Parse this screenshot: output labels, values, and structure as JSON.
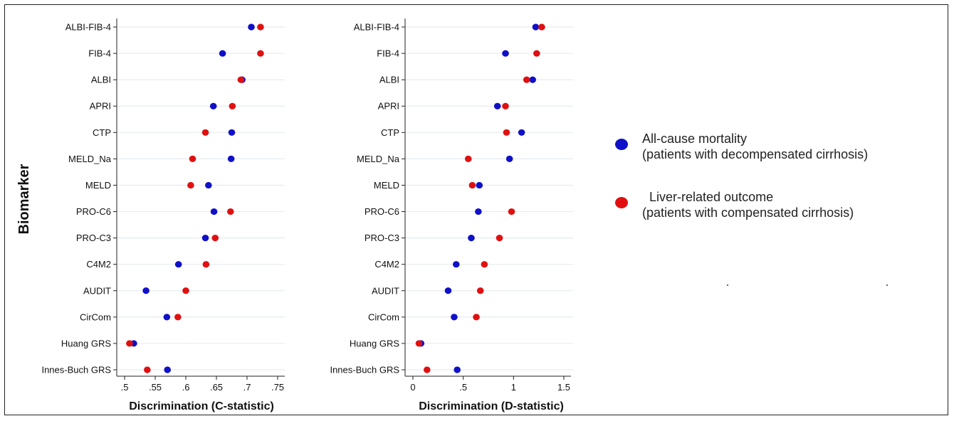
{
  "chart_data": [
    {
      "type": "scatter",
      "xlabel": "Discrimination (C-statistic)",
      "ylabel": "Biomarker",
      "xlim": [
        0.5,
        0.75
      ],
      "xticks": [
        ".5",
        ".55",
        ".6",
        ".65",
        ".7",
        ".75"
      ],
      "grid": "horizontal",
      "categories": [
        "ALBI-FIB-4",
        "FIB-4",
        "ALBI",
        "APRI",
        "CTP",
        "MELD_Na",
        "MELD",
        "PRO-C6",
        "PRO-C3",
        "C4M2",
        "AUDIT",
        "CirCom",
        "Huang GRS",
        "Innes-Buch GRS"
      ],
      "series": [
        {
          "name": "All-cause mortality (patients with decompensated cirrhosis)",
          "color": "#1010c8",
          "values": [
            0.707,
            0.66,
            0.692,
            0.645,
            0.675,
            0.674,
            0.637,
            0.646,
            0.632,
            0.588,
            0.535,
            0.569,
            0.515,
            0.57
          ]
        },
        {
          "name": "Liver-related outcome (patients with compensated cirrhosis)",
          "color": "#e01010",
          "values": [
            0.722,
            0.722,
            0.69,
            0.676,
            0.632,
            0.611,
            0.608,
            0.673,
            0.648,
            0.633,
            0.6,
            0.587,
            0.508,
            0.537
          ]
        }
      ]
    },
    {
      "type": "scatter",
      "xlabel": "Discrimination (D-statistic)",
      "xlim": [
        0,
        1.5
      ],
      "xticks": [
        "0",
        ".5",
        "1",
        "1.5"
      ],
      "grid": "horizontal",
      "categories": [
        "ALBI-FIB-4",
        "FIB-4",
        "ALBI",
        "APRI",
        "CTP",
        "MELD_Na",
        "MELD",
        "PRO-C6",
        "PRO-C3",
        "C4M2",
        "AUDIT",
        "CirCom",
        "Huang GRS",
        "Innes-Buch GRS"
      ],
      "series": [
        {
          "name": "All-cause mortality (patients with decompensated cirrhosis)",
          "color": "#1010c8",
          "values": [
            1.22,
            0.92,
            1.19,
            0.84,
            1.08,
            0.96,
            0.66,
            0.65,
            0.58,
            0.43,
            0.35,
            0.41,
            0.08,
            0.44
          ]
        },
        {
          "name": "Liver-related outcome (patients with compensated cirrhosis)",
          "color": "#e01010",
          "values": [
            1.28,
            1.23,
            1.13,
            0.92,
            0.93,
            0.55,
            0.59,
            0.98,
            0.86,
            0.71,
            0.67,
            0.63,
            0.06,
            0.14
          ]
        }
      ]
    }
  ],
  "legend": {
    "items": [
      {
        "line1": "All-cause mortality",
        "line2": "(patients with decompensated cirrhosis)",
        "color": "#1010c8"
      },
      {
        "line1": "Liver-related outcome",
        "line2": "(patients with compensated cirrhosis)",
        "color": "#e01010"
      }
    ]
  }
}
